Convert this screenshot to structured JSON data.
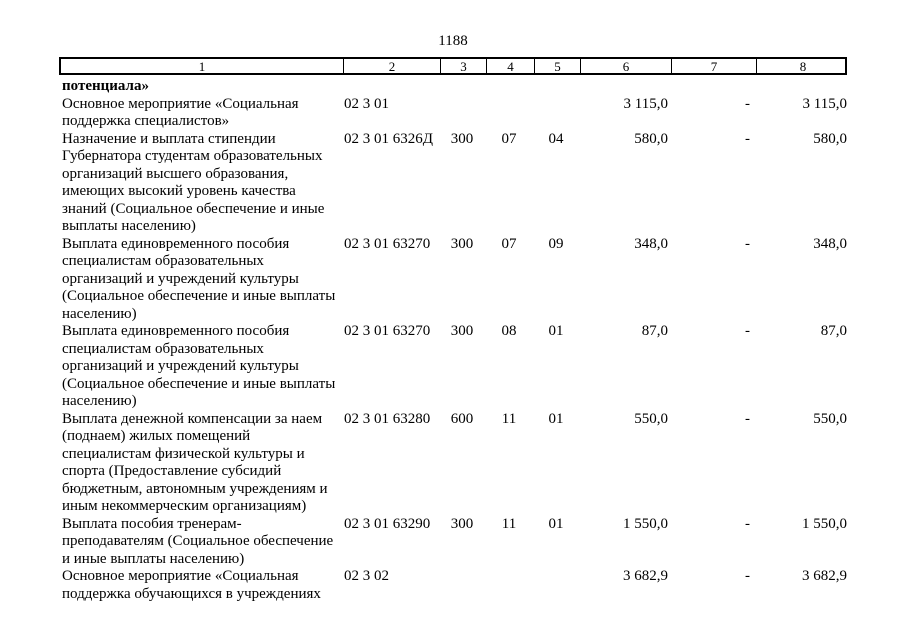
{
  "page_number": "1188",
  "table": {
    "header_labels": [
      "1",
      "2",
      "3",
      "4",
      "5",
      "6",
      "7",
      "8"
    ],
    "rows": [
      {
        "name": "потенциала»",
        "bold": true,
        "code": "",
        "expense_type": "",
        "section": "",
        "subsection": "",
        "amount_total": "",
        "amount_change": "",
        "amount_final": ""
      },
      {
        "name": "Основное мероприятие «Социальная\nподдержка специалистов»",
        "bold": false,
        "code": "02 3 01",
        "expense_type": "",
        "section": "",
        "subsection": "",
        "amount_total": "3 115,0",
        "amount_change": "-",
        "amount_final": "3 115,0"
      },
      {
        "name": "Назначение и выплата стипендии\nГубернатора студентам образовательных\nорганизаций высшего образования,\nимеющих высокий уровень качества\nзнаний (Социальное обеспечение и иные\nвыплаты населению)",
        "bold": false,
        "code": "02 3 01 6326Д",
        "expense_type": "300",
        "section": "07",
        "subsection": "04",
        "amount_total": "580,0",
        "amount_change": "-",
        "amount_final": "580,0"
      },
      {
        "name": "Выплата единовременного пособия\nспециалистам образовательных\nорганизаций и учреждений культуры\n(Социальное обеспечение и иные выплаты\nнаселению)",
        "bold": false,
        "code": "02 3 01 63270",
        "expense_type": "300",
        "section": "07",
        "subsection": "09",
        "amount_total": "348,0",
        "amount_change": "-",
        "amount_final": "348,0"
      },
      {
        "name": "Выплата единовременного пособия\nспециалистам образовательных\nорганизаций и учреждений культуры\n(Социальное обеспечение и иные выплаты\nнаселению)",
        "bold": false,
        "code": "02 3 01 63270",
        "expense_type": "300",
        "section": "08",
        "subsection": "01",
        "amount_total": "87,0",
        "amount_change": "-",
        "amount_final": "87,0"
      },
      {
        "name": "Выплата денежной компенсации за наем\n(поднаем) жилых помещений\nспециалистам физической культуры и\nспорта (Предоставление субсидий\nбюджетным, автономным учреждениям и\nиным некоммерческим организациям)",
        "bold": false,
        "code": "02 3 01 63280",
        "expense_type": "600",
        "section": "11",
        "subsection": "01",
        "amount_total": "550,0",
        "amount_change": "-",
        "amount_final": "550,0"
      },
      {
        "name": "Выплата пособия тренерам-\nпреподавателям (Социальное обеспечение\nи иные выплаты населению)",
        "bold": false,
        "code": "02 3 01 63290",
        "expense_type": "300",
        "section": "11",
        "subsection": "01",
        "amount_total": "1 550,0",
        "amount_change": "-",
        "amount_final": "1 550,0"
      },
      {
        "name": "Основное мероприятие «Социальная\nподдержка обучающихся в учреждениях",
        "bold": false,
        "code": "02 3 02",
        "expense_type": "",
        "section": "",
        "subsection": "",
        "amount_total": "3 682,9",
        "amount_change": "-",
        "amount_final": "3 682,9"
      }
    ]
  }
}
